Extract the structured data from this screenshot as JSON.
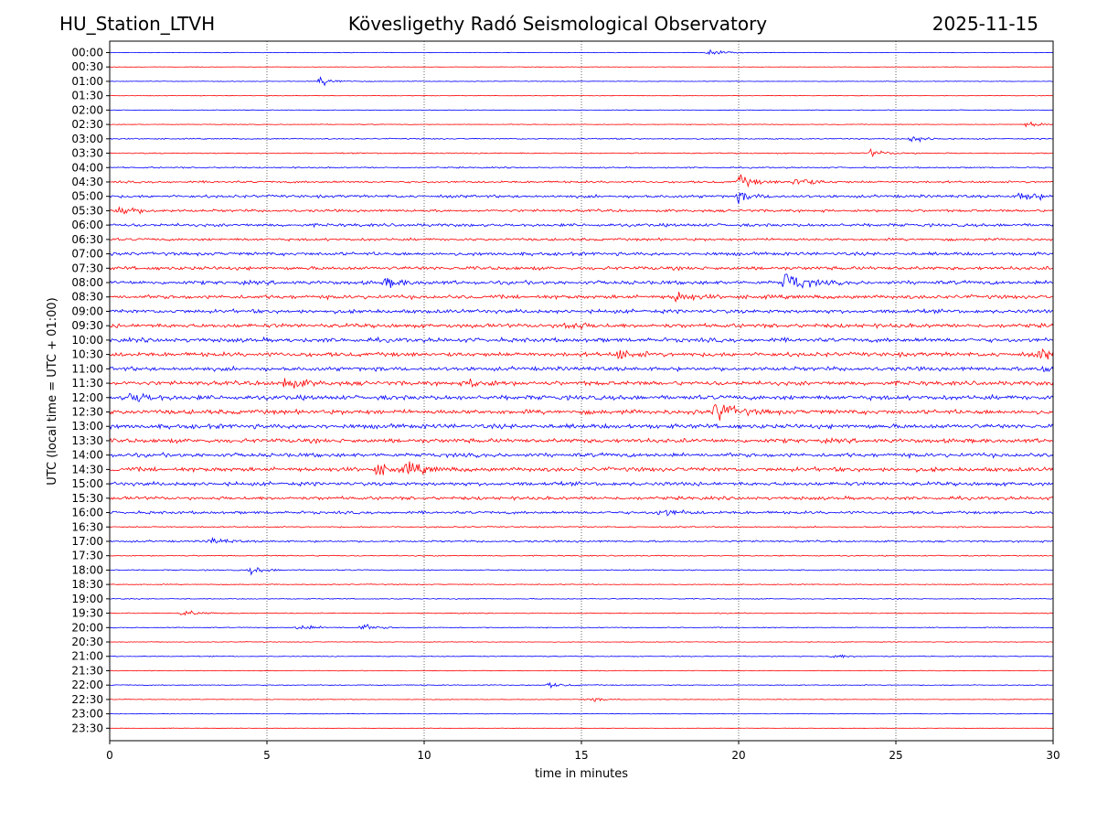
{
  "header": {
    "station": "HU_Station_LTVH",
    "observatory": "Kövesligethy Radó Seismological Observatory",
    "date": "2025-11-15"
  },
  "chart_data": {
    "type": "line",
    "title": "Kövesligethy Radó Seismological Observatory",
    "xlabel": "time in minutes",
    "ylabel": "UTC (local time = UTC + 01:00)",
    "xlim": [
      0,
      30
    ],
    "x_ticks": [
      "0",
      "5",
      "10",
      "15",
      "20",
      "25",
      "30"
    ],
    "x_tick_values": [
      0,
      5,
      10,
      15,
      20,
      25,
      30
    ],
    "grid": "vertical dotted",
    "colors": [
      "#0000ff",
      "#ff0000"
    ],
    "traces": [
      "00:00",
      "00:30",
      "01:00",
      "01:30",
      "02:00",
      "02:30",
      "03:00",
      "03:30",
      "04:00",
      "04:30",
      "05:00",
      "05:30",
      "06:00",
      "06:30",
      "07:00",
      "07:30",
      "08:00",
      "08:30",
      "09:00",
      "09:30",
      "10:00",
      "10:30",
      "11:00",
      "11:30",
      "12:00",
      "12:30",
      "13:00",
      "13:30",
      "14:00",
      "14:30",
      "15:00",
      "15:30",
      "16:00",
      "16:30",
      "17:00",
      "17:30",
      "18:00",
      "18:30",
      "19:00",
      "19:30",
      "20:00",
      "20:30",
      "21:00",
      "21:30",
      "22:00",
      "22:30",
      "23:00",
      "23:30"
    ],
    "noise_level": [
      0.25,
      0.2,
      0.25,
      0.2,
      0.3,
      0.3,
      0.5,
      0.5,
      0.6,
      0.9,
      1.2,
      1.1,
      1.3,
      1.1,
      1.4,
      1.5,
      1.6,
      1.6,
      1.6,
      1.7,
      1.8,
      1.8,
      1.7,
      1.8,
      1.9,
      1.9,
      1.9,
      1.8,
      1.7,
      1.8,
      1.6,
      1.4,
      1.2,
      0.6,
      0.8,
      0.5,
      0.5,
      0.4,
      0.4,
      0.4,
      0.4,
      0.3,
      0.4,
      0.3,
      0.4,
      0.3,
      0.25,
      0.2
    ],
    "events": [
      {
        "trace": "00:00",
        "minute": 19.0,
        "amplitude": 3
      },
      {
        "trace": "01:00",
        "minute": 6.7,
        "amplitude": 4
      },
      {
        "trace": "02:30",
        "minute": 29.2,
        "amplitude": 3
      },
      {
        "trace": "03:00",
        "minute": 25.5,
        "amplitude": 3
      },
      {
        "trace": "03:30",
        "minute": 24.2,
        "amplitude": 3
      },
      {
        "trace": "04:30",
        "minute": 20.0,
        "amplitude": 6
      },
      {
        "trace": "04:30",
        "minute": 21.8,
        "amplitude": 5
      },
      {
        "trace": "05:00",
        "minute": 29.0,
        "amplitude": 5
      },
      {
        "trace": "05:00",
        "minute": 20.0,
        "amplitude": 4
      },
      {
        "trace": "05:30",
        "minute": 0.3,
        "amplitude": 5
      },
      {
        "trace": "08:00",
        "minute": 21.5,
        "amplitude": 11
      },
      {
        "trace": "08:00",
        "minute": 8.8,
        "amplitude": 4
      },
      {
        "trace": "08:30",
        "minute": 18.0,
        "amplitude": 5
      },
      {
        "trace": "09:30",
        "minute": 14.5,
        "amplitude": 4
      },
      {
        "trace": "10:30",
        "minute": 16.2,
        "amplitude": 4
      },
      {
        "trace": "10:30",
        "minute": 29.6,
        "amplitude": 4
      },
      {
        "trace": "11:00",
        "minute": 29.5,
        "amplitude": 4
      },
      {
        "trace": "11:30",
        "minute": 5.5,
        "amplitude": 6
      },
      {
        "trace": "11:30",
        "minute": 11.5,
        "amplitude": 4
      },
      {
        "trace": "12:00",
        "minute": 0.7,
        "amplitude": 6
      },
      {
        "trace": "12:30",
        "minute": 19.3,
        "amplitude": 10
      },
      {
        "trace": "14:30",
        "minute": 9.5,
        "amplitude": 5
      },
      {
        "trace": "14:30",
        "minute": 8.5,
        "amplitude": 5
      },
      {
        "trace": "16:00",
        "minute": 17.5,
        "amplitude": 4
      },
      {
        "trace": "17:00",
        "minute": 3.2,
        "amplitude": 3
      },
      {
        "trace": "18:00",
        "minute": 4.5,
        "amplitude": 3
      },
      {
        "trace": "19:30",
        "minute": 2.3,
        "amplitude": 3
      },
      {
        "trace": "20:00",
        "minute": 6.0,
        "amplitude": 3
      },
      {
        "trace": "20:00",
        "minute": 8.0,
        "amplitude": 3
      },
      {
        "trace": "21:00",
        "minute": 23.0,
        "amplitude": 2
      },
      {
        "trace": "22:00",
        "minute": 14.0,
        "amplitude": 2
      },
      {
        "trace": "22:30",
        "minute": 15.2,
        "amplitude": 2
      }
    ]
  }
}
